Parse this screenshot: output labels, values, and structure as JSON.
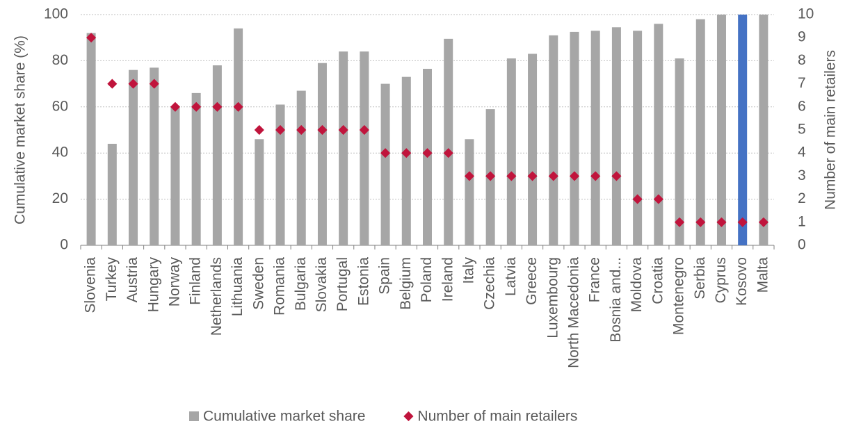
{
  "chart_data": {
    "type": "bar_scatter",
    "categories": [
      "Slovenia",
      "Turkey",
      "Austria",
      "Hungary",
      "Norway",
      "Finland",
      "Netherlands",
      "Lithuania",
      "Sweden",
      "Romania",
      "Bulgaria",
      "Slovakia",
      "Portugal",
      "Estonia",
      "Spain",
      "Belgium",
      "Poland",
      "Ireland",
      "Italy",
      "Czechia",
      "Latvia",
      "Greece",
      "Luxembourg",
      "North Macedonia",
      "France",
      "Bosnia and...",
      "Moldova",
      "Croatia",
      "Montenegro",
      "Serbia",
      "Cyprus",
      "Kosovo",
      "Malta"
    ],
    "series": [
      {
        "name": "Cumulative market share",
        "type": "bar",
        "color": "#a6a6a6",
        "values": [
          92,
          44,
          76,
          77,
          60,
          66,
          78,
          94,
          46,
          61,
          67,
          79,
          84,
          84,
          70,
          73,
          76.5,
          89.5,
          46,
          59,
          81,
          83,
          91,
          92.5,
          93,
          94.5,
          93,
          96,
          81,
          98,
          100,
          100,
          100
        ],
        "highlight": {
          "index": 31,
          "color": "#4472c4"
        }
      },
      {
        "name": "Number of main retailers",
        "type": "scatter",
        "axis": "y2",
        "color": "#c0143c",
        "values": [
          9,
          7,
          7,
          7,
          6,
          6,
          6,
          6,
          5,
          5,
          5,
          5,
          5,
          5,
          4,
          4,
          4,
          4,
          3,
          3,
          3,
          3,
          3,
          3,
          3,
          3,
          2,
          2,
          1,
          1,
          1,
          1,
          1
        ]
      }
    ],
    "ylabel": "Cumulative market share (%)",
    "y2label": "Number of main retailers",
    "ylim": [
      0,
      100
    ],
    "yticks": [
      0,
      20,
      40,
      60,
      80,
      100
    ],
    "y2lim": [
      0,
      10
    ],
    "y2ticks": [
      0,
      1,
      2,
      3,
      4,
      5,
      6,
      7,
      8,
      9,
      10
    ],
    "grid": true,
    "legend": "bottom"
  }
}
